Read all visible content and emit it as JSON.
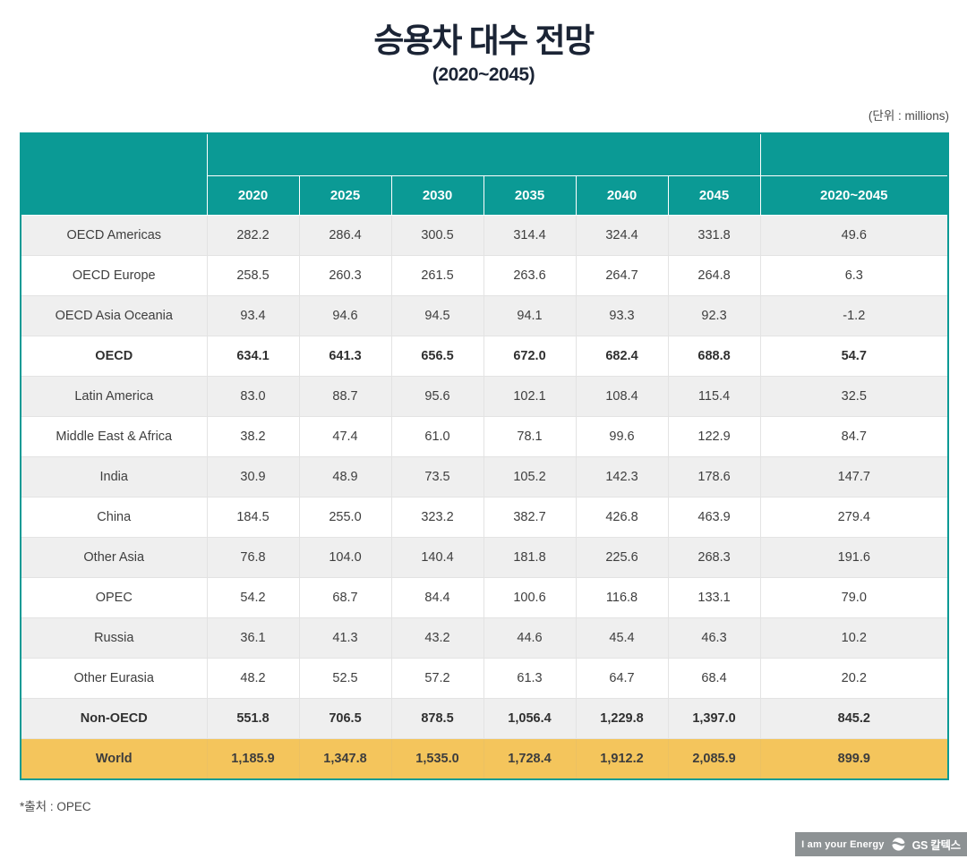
{
  "page": {
    "title": "승용차 대수 전망",
    "subtitle": "(2020~2045)",
    "unit_note": "(단위 : millions)",
    "footnote": "*출처 : OPEC"
  },
  "footer": {
    "slogan": "I am your Energy",
    "brand": "GS 칼텍스",
    "logo_icon": "gs-swirl-circle-icon"
  },
  "colors": {
    "header_teal": "#0b9a95",
    "title_navy": "#1b2435",
    "row_alt_gray": "#efefef",
    "world_yellow": "#f4c55c",
    "footer_gray": "#8d9294"
  },
  "chart_data": {
    "type": "table",
    "title": "승용차 대수 전망 (2020~2045)",
    "unit": "millions",
    "source": "OPEC",
    "columns": [
      "2020",
      "2025",
      "2030",
      "2035",
      "2040",
      "2045",
      "2020~2045"
    ],
    "rows": [
      {
        "label": "OECD Americas",
        "values": [
          282.2,
          286.4,
          300.5,
          314.4,
          324.4,
          331.8,
          49.6
        ],
        "bold": false,
        "highlight": false
      },
      {
        "label": "OECD Europe",
        "values": [
          258.5,
          260.3,
          261.5,
          263.6,
          264.7,
          264.8,
          6.3
        ],
        "bold": false,
        "highlight": false
      },
      {
        "label": "OECD Asia Oceania",
        "values": [
          93.4,
          94.6,
          94.5,
          94.1,
          93.3,
          92.3,
          -1.2
        ],
        "bold": false,
        "highlight": false
      },
      {
        "label": "OECD",
        "values": [
          634.1,
          641.3,
          656.5,
          672.0,
          682.4,
          688.8,
          54.7
        ],
        "bold": true,
        "highlight": false
      },
      {
        "label": "Latin America",
        "values": [
          83.0,
          88.7,
          95.6,
          102.1,
          108.4,
          115.4,
          32.5
        ],
        "bold": false,
        "highlight": false
      },
      {
        "label": "Middle East & Africa",
        "values": [
          38.2,
          47.4,
          61.0,
          78.1,
          99.6,
          122.9,
          84.7
        ],
        "bold": false,
        "highlight": false
      },
      {
        "label": "India",
        "values": [
          30.9,
          48.9,
          73.5,
          105.2,
          142.3,
          178.6,
          147.7
        ],
        "bold": false,
        "highlight": false
      },
      {
        "label": "China",
        "values": [
          184.5,
          255.0,
          323.2,
          382.7,
          426.8,
          463.9,
          279.4
        ],
        "bold": false,
        "highlight": false
      },
      {
        "label": "Other Asia",
        "values": [
          76.8,
          104.0,
          140.4,
          181.8,
          225.6,
          268.3,
          191.6
        ],
        "bold": false,
        "highlight": false
      },
      {
        "label": "OPEC",
        "values": [
          54.2,
          68.7,
          84.4,
          100.6,
          116.8,
          133.1,
          79.0
        ],
        "bold": false,
        "highlight": false
      },
      {
        "label": "Russia",
        "values": [
          36.1,
          41.3,
          43.2,
          44.6,
          45.4,
          46.3,
          10.2
        ],
        "bold": false,
        "highlight": false
      },
      {
        "label": "Other Eurasia",
        "values": [
          48.2,
          52.5,
          57.2,
          61.3,
          64.7,
          68.4,
          20.2
        ],
        "bold": false,
        "highlight": false
      },
      {
        "label": "Non-OECD",
        "values": [
          551.8,
          706.5,
          878.5,
          1056.4,
          1229.8,
          1397.0,
          845.2
        ],
        "bold": true,
        "highlight": false
      },
      {
        "label": "World",
        "values": [
          1185.9,
          1347.8,
          1535.0,
          1728.4,
          1912.2,
          2085.9,
          899.9
        ],
        "bold": true,
        "highlight": true
      }
    ]
  }
}
